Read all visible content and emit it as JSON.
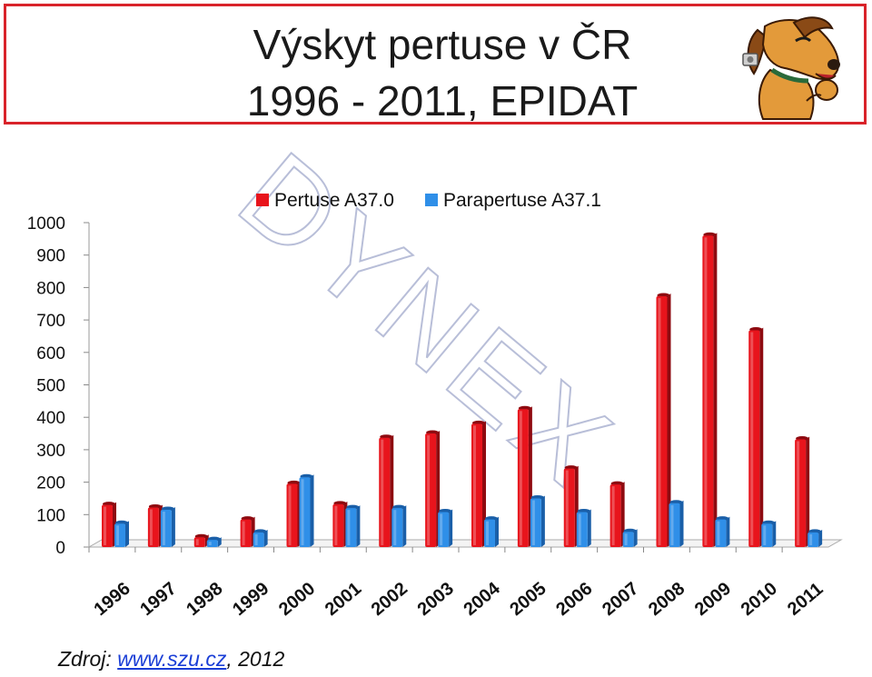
{
  "title": {
    "line1": "Výskyt pertuse v ČR",
    "line2": "1996 - 2011, EPIDAT"
  },
  "watermark": "DYNEX",
  "source": {
    "prefix": "Zdroj: ",
    "link": "www.szu.cz",
    "suffix": ", 2012"
  },
  "colors": {
    "pertuse": "#e8141c",
    "parapertuse": "#2f8fe8",
    "border": "#d9232a"
  },
  "chart_data": {
    "type": "bar",
    "categories": [
      "1996",
      "1997",
      "1998",
      "1999",
      "2000",
      "2001",
      "2002",
      "2003",
      "2004",
      "2005",
      "2006",
      "2007",
      "2008",
      "2009",
      "2010",
      "2011"
    ],
    "series": [
      {
        "name": "Pertuse A37.0",
        "values": [
          130,
          122,
          30,
          85,
          195,
          132,
          337,
          350,
          380,
          425,
          242,
          193,
          773,
          960,
          668,
          332
        ]
      },
      {
        "name": "Parapertuse A37.1",
        "values": [
          72,
          115,
          22,
          45,
          215,
          120,
          120,
          108,
          85,
          150,
          108,
          47,
          135,
          85,
          72,
          45
        ]
      }
    ],
    "yticks": [
      "0",
      "100",
      "200",
      "300",
      "400",
      "500",
      "600",
      "700",
      "800",
      "900",
      "1000"
    ],
    "ylim": [
      0,
      1000
    ],
    "legend_position": "top",
    "grid": false
  }
}
